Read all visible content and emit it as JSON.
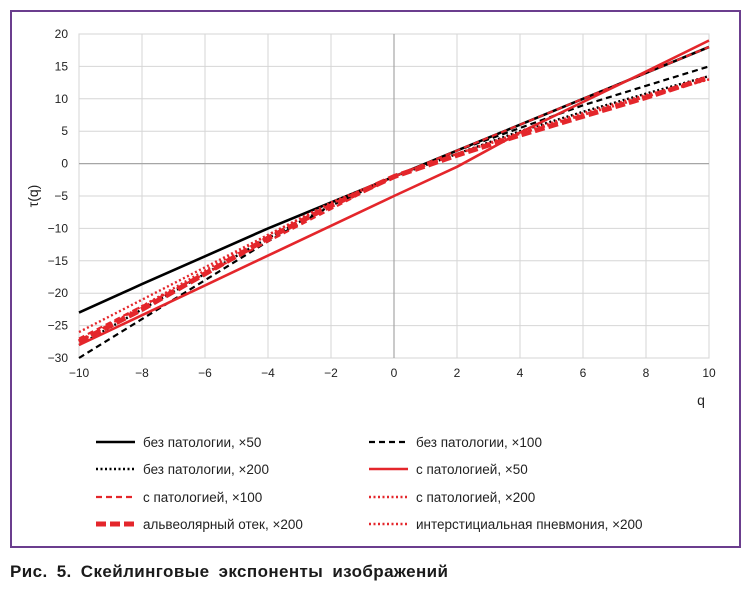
{
  "caption": "Рис.  5.  Скейлинговые  экспоненты  изображений",
  "chart_data": {
    "type": "line",
    "xlabel": "q",
    "ylabel": "τ(q)",
    "xlim": [
      -10,
      10
    ],
    "ylim": [
      -30,
      20
    ],
    "x_ticks": [
      -10,
      -8,
      -6,
      -4,
      -2,
      0,
      2,
      4,
      6,
      8,
      10
    ],
    "y_ticks": [
      -30,
      -25,
      -20,
      -15,
      -10,
      -5,
      0,
      5,
      10,
      15,
      20
    ],
    "x_tick_labels": [
      "−10",
      "−8",
      "−6",
      "−4",
      "−2",
      "0",
      "2",
      "4",
      "6",
      "8",
      "10"
    ],
    "y_tick_labels": [
      "−30",
      "−25",
      "−20",
      "−15",
      "−10",
      "−5",
      "0",
      "5",
      "10",
      "15",
      "20"
    ],
    "grid": true,
    "legend_position": "bottom",
    "x": [
      -10,
      -8,
      -6,
      -4,
      -2,
      0,
      2,
      4,
      6,
      8,
      10
    ],
    "series": [
      {
        "name": "без патологии, ×50",
        "color": "#000000",
        "style": "solid",
        "values": [
          -23.0,
          -18.6,
          -14.3,
          -10.0,
          -6.0,
          -2.0,
          2.0,
          6.0,
          10.0,
          14.0,
          18.0
        ]
      },
      {
        "name": "без патологии, ×100",
        "color": "#000000",
        "style": "dashed",
        "values": [
          -30.0,
          -24.0,
          -18.0,
          -12.0,
          -6.5,
          -2.0,
          2.0,
          5.5,
          9.0,
          12.0,
          15.0
        ]
      },
      {
        "name": "без патологии, ×200",
        "color": "#000000",
        "style": "dotted",
        "values": [
          -28.0,
          -22.5,
          -17.0,
          -11.5,
          -6.5,
          -2.0,
          1.5,
          5.0,
          8.0,
          10.8,
          13.5
        ]
      },
      {
        "name": "с патологией, ×50",
        "color": "#e4262b",
        "style": "solid",
        "values": [
          -28.0,
          -23.4,
          -18.8,
          -14.2,
          -9.6,
          -5.0,
          -0.5,
          4.8,
          9.5,
          14.2,
          19.0
        ]
      },
      {
        "name": "с патологией, ×100",
        "color": "#e4262b",
        "style": "dashed",
        "values": [
          -27.0,
          -22.0,
          -17.0,
          -12.0,
          -7.0,
          -2.0,
          2.0,
          6.0,
          10.0,
          14.0,
          18.0
        ]
      },
      {
        "name": "с патологией, ×200",
        "color": "#e4262b",
        "style": "dotted",
        "values": [
          -27.5,
          -22.0,
          -16.5,
          -11.0,
          -6.0,
          -2.0,
          1.5,
          4.8,
          7.8,
          10.6,
          13.0
        ]
      },
      {
        "name": "альвеолярный отек, ×200",
        "color": "#e4262b",
        "style": "thick-dashed",
        "values": [
          -27.5,
          -22.5,
          -17.0,
          -11.5,
          -6.5,
          -2.0,
          1.3,
          4.4,
          7.3,
          10.2,
          13.3
        ]
      },
      {
        "name": "интерстициальная пневмония, ×200",
        "color": "#e4262b",
        "style": "dotted",
        "values": [
          -26.0,
          -21.0,
          -16.0,
          -11.0,
          -6.2,
          -2.0,
          1.5,
          4.6,
          7.5,
          10.3,
          13.0
        ]
      }
    ]
  }
}
